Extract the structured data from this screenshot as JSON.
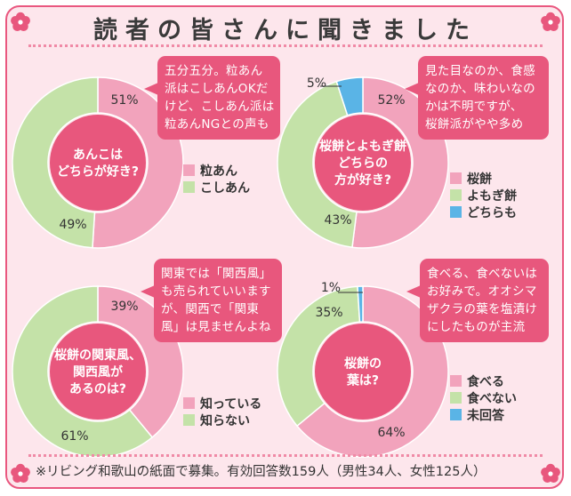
{
  "title": "読者の皆さんに聞きました",
  "footer": "※リビング和歌山の紙面で募集。有効回答数159人（男性34人、女性125人）",
  "colors": {
    "pink": "#f2a3bc",
    "green": "#c4e2a8",
    "blue": "#5ab4e6",
    "center": "#e8577d",
    "bubble": "#e8577d",
    "frame": "#e9577f",
    "background": "#fde6ec"
  },
  "chart_data": [
    {
      "type": "pie",
      "style": "donut",
      "center_text": [
        "あんこは",
        "どちらが好き?"
      ],
      "slices": [
        {
          "label": "粒あん",
          "value": 51,
          "color": "#f2a3bc"
        },
        {
          "label": "こしあん",
          "value": 49,
          "color": "#c4e2a8"
        }
      ],
      "comment": [
        "五分五分。粒あん",
        "派はこしあんOKだ",
        "けど、こしあん派は",
        "粒あんNGとの声も"
      ],
      "legend_placement": "bottom-right"
    },
    {
      "type": "pie",
      "style": "donut",
      "center_text": [
        "桜餅とよもぎ餅",
        "どちらの",
        "方が好き?"
      ],
      "slices": [
        {
          "label": "桜餅",
          "value": 52,
          "color": "#f2a3bc"
        },
        {
          "label": "よもぎ餅",
          "value": 43,
          "color": "#c4e2a8"
        },
        {
          "label": "どちらも",
          "value": 5,
          "color": "#5ab4e6"
        }
      ],
      "comment": [
        "見た目なのか、食感",
        "なのか、味わいなの",
        "かは不明ですが、",
        "桜餅派がやや多め"
      ],
      "legend_placement": "bottom-right"
    },
    {
      "type": "pie",
      "style": "donut",
      "center_text": [
        "桜餅の関東風、",
        "関西風が",
        "あるのは?"
      ],
      "slices": [
        {
          "label": "知っている",
          "value": 39,
          "color": "#f2a3bc"
        },
        {
          "label": "知らない",
          "value": 61,
          "color": "#c4e2a8"
        }
      ],
      "comment": [
        "関東では「関西風」",
        "も売られていいます",
        "が、関西で「関東",
        "風」は見ませんよね"
      ],
      "legend_placement": "bottom-right"
    },
    {
      "type": "pie",
      "style": "donut",
      "center_text": [
        "桜餅の",
        "葉は?"
      ],
      "slices": [
        {
          "label": "食べる",
          "value": 64,
          "color": "#f2a3bc"
        },
        {
          "label": "食べない",
          "value": 35,
          "color": "#c4e2a8"
        },
        {
          "label": "未回答",
          "value": 1,
          "color": "#5ab4e6"
        }
      ],
      "comment": [
        "食べる、食べないは",
        "お好みで。オオシマ",
        "ザクラの葉を塩漬け",
        "にしたものが主流"
      ],
      "legend_placement": "bottom-right"
    }
  ]
}
